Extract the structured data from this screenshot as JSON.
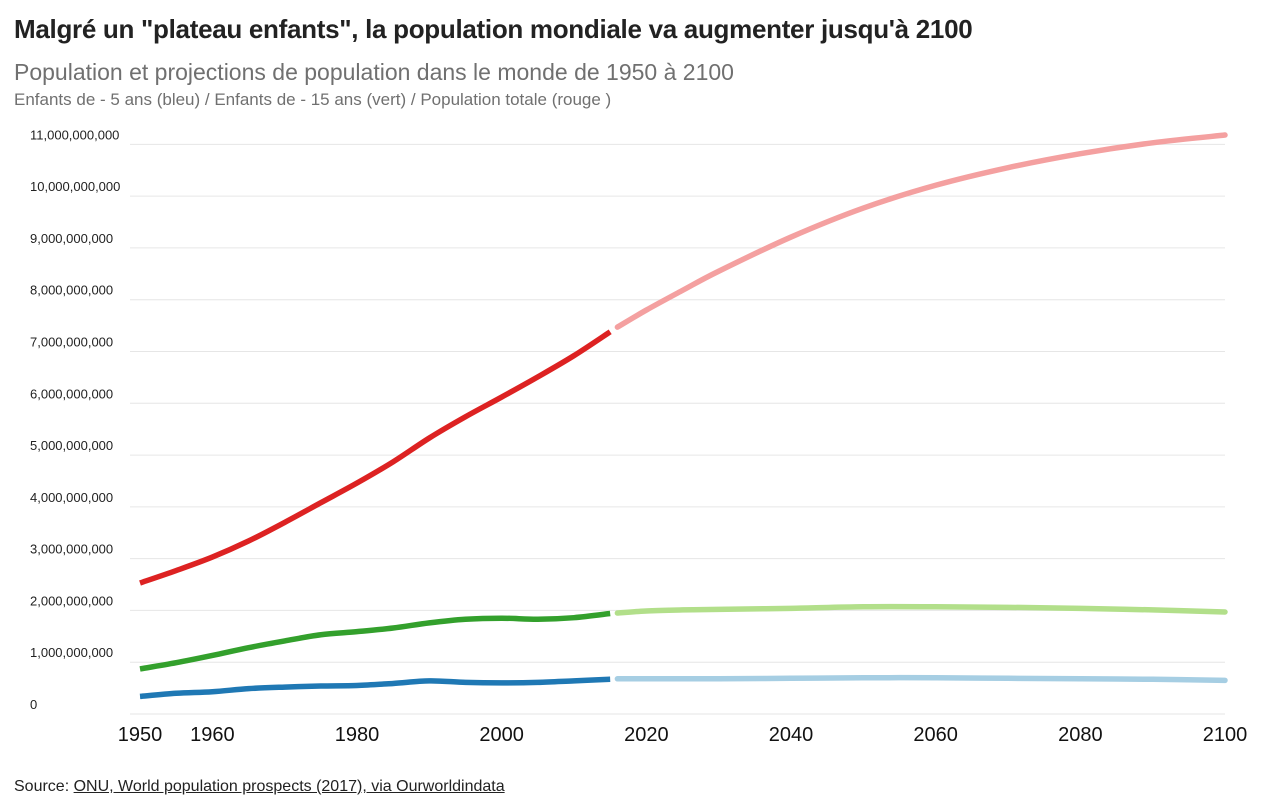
{
  "header": {
    "title": "Malgré un \"plateau enfants\", la population mondiale va augmenter jusqu'à 2100",
    "subtitle": "Population et projections de population dans le monde de 1950 à 2100",
    "legend_text": "Enfants de - 5 ans (bleu) / Enfants de - 15 ans (vert) / Population totale (rouge )"
  },
  "footer": {
    "source_label": "Source:",
    "source_link": "ONU, World population prospects (2017), via Ourworldindata"
  },
  "chart_data": {
    "type": "line",
    "title": "Malgré un \"plateau enfants\", la population mondiale va augmenter jusqu'à 2100",
    "subtitle": "Population et projections de population dans le monde de 1950 à 2100",
    "xlim": [
      1950,
      2100
    ],
    "ylim": [
      0,
      11200000000
    ],
    "x_ticks": [
      1950,
      1960,
      1980,
      2000,
      2020,
      2040,
      2060,
      2080,
      2100
    ],
    "y_ticks": [
      {
        "value": 0,
        "label": "0"
      },
      {
        "value": 1000000000,
        "label": "1,000,000,000"
      },
      {
        "value": 2000000000,
        "label": "2,000,000,000"
      },
      {
        "value": 3000000000,
        "label": "3,000,000,000"
      },
      {
        "value": 4000000000,
        "label": "4,000,000,000"
      },
      {
        "value": 5000000000,
        "label": "5,000,000,000"
      },
      {
        "value": 6000000000,
        "label": "6,000,000,000"
      },
      {
        "value": 7000000000,
        "label": "7,000,000,000"
      },
      {
        "value": 8000000000,
        "label": "8,000,000,000"
      },
      {
        "value": 9000000000,
        "label": "9,000,000,000"
      },
      {
        "value": 10000000000,
        "label": "10,000,000,000"
      },
      {
        "value": 11000000000,
        "label": "11,000,000,000"
      }
    ],
    "grid": true,
    "series": [
      {
        "color_historical": "#dd2222",
        "color_projection": "#f4a0a0",
        "historical": {
          "x": [
            1950,
            1955,
            1960,
            1965,
            1970,
            1975,
            1980,
            1985,
            1990,
            1995,
            2000,
            2005,
            2010,
            2015
          ],
          "y": [
            2530000000,
            2770000000,
            3030000000,
            3340000000,
            3700000000,
            4080000000,
            4460000000,
            4870000000,
            5330000000,
            5740000000,
            6120000000,
            6510000000,
            6920000000,
            7380000000
          ]
        },
        "projection": {
          "x": [
            2016,
            2020,
            2025,
            2030,
            2040,
            2050,
            2060,
            2070,
            2080,
            2090,
            2100
          ],
          "y": [
            7470000000,
            7800000000,
            8180000000,
            8550000000,
            9210000000,
            9770000000,
            10210000000,
            10550000000,
            10820000000,
            11030000000,
            11180000000
          ]
        }
      },
      {
        "color_historical": "#33a02c",
        "color_projection": "#b2df8a",
        "historical": {
          "x": [
            1950,
            1955,
            1960,
            1965,
            1970,
            1975,
            1980,
            1985,
            1990,
            1995,
            2000,
            2005,
            2010,
            2015
          ],
          "y": [
            870000000,
            990000000,
            1130000000,
            1280000000,
            1410000000,
            1530000000,
            1590000000,
            1660000000,
            1760000000,
            1830000000,
            1850000000,
            1830000000,
            1860000000,
            1940000000
          ]
        },
        "projection": {
          "x": [
            2016,
            2020,
            2025,
            2030,
            2040,
            2050,
            2060,
            2070,
            2080,
            2090,
            2100
          ],
          "y": [
            1950000000,
            1990000000,
            2010000000,
            2020000000,
            2040000000,
            2070000000,
            2070000000,
            2060000000,
            2040000000,
            2010000000,
            1970000000
          ]
        }
      },
      {
        "color_historical": "#1f78b4",
        "color_projection": "#a6cee3",
        "historical": {
          "x": [
            1950,
            1955,
            1960,
            1965,
            1970,
            1975,
            1980,
            1985,
            1990,
            1995,
            2000,
            2005,
            2010,
            2015
          ],
          "y": [
            340000000,
            400000000,
            430000000,
            490000000,
            520000000,
            540000000,
            550000000,
            590000000,
            640000000,
            610000000,
            600000000,
            610000000,
            640000000,
            670000000
          ]
        },
        "projection": {
          "x": [
            2016,
            2020,
            2025,
            2030,
            2040,
            2050,
            2060,
            2070,
            2080,
            2090,
            2100
          ],
          "y": [
            680000000,
            680000000,
            680000000,
            680000000,
            690000000,
            700000000,
            700000000,
            690000000,
            680000000,
            670000000,
            650000000
          ]
        }
      }
    ]
  }
}
